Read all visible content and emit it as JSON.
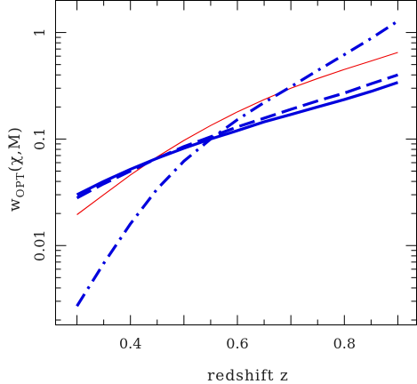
{
  "chart_data": {
    "type": "line",
    "title": "",
    "xlabel": "redshift z",
    "ylabel": {
      "base": "w",
      "subscript": "OPT",
      "rest": "(χ,M)"
    },
    "xlim": [
      0.26,
      0.935
    ],
    "ylim": [
      0.0018,
      2.0
    ],
    "yscale": "log",
    "grid": false,
    "x_ticks": [
      0.4,
      0.6,
      0.8
    ],
    "x_tick_labels": [
      "0.4",
      "0.6",
      "0.8"
    ],
    "y_ticks": [
      0.01,
      0.1,
      1
    ],
    "y_tick_labels": [
      "0.01",
      "0.1",
      "1"
    ],
    "series": [
      {
        "style": "solid-thin",
        "color": "#ee0000",
        "x": [
          0.3,
          0.35,
          0.4,
          0.45,
          0.5,
          0.55,
          0.6,
          0.65,
          0.7,
          0.75,
          0.8,
          0.85,
          0.9
        ],
        "y": [
          0.0195,
          0.03,
          0.046,
          0.068,
          0.097,
          0.134,
          0.18,
          0.235,
          0.3,
          0.37,
          0.45,
          0.54,
          0.65
        ]
      },
      {
        "style": "solid-thick",
        "color": "#0000dd",
        "x": [
          0.3,
          0.35,
          0.4,
          0.45,
          0.5,
          0.55,
          0.6,
          0.65,
          0.7,
          0.75,
          0.8,
          0.85,
          0.9
        ],
        "y": [
          0.03,
          0.04,
          0.052,
          0.066,
          0.082,
          0.1,
          0.12,
          0.145,
          0.17,
          0.2,
          0.235,
          0.28,
          0.34
        ]
      },
      {
        "style": "dashed-thick",
        "color": "#0000dd",
        "x": [
          0.3,
          0.35,
          0.4,
          0.45,
          0.5,
          0.55,
          0.6,
          0.65,
          0.7,
          0.75,
          0.8,
          0.85,
          0.9
        ],
        "y": [
          0.028,
          0.038,
          0.05,
          0.066,
          0.085,
          0.105,
          0.13,
          0.157,
          0.19,
          0.228,
          0.27,
          0.33,
          0.4
        ]
      },
      {
        "style": "dashdot-thick",
        "color": "#0000dd",
        "x": [
          0.3,
          0.35,
          0.4,
          0.45,
          0.5,
          0.55,
          0.6,
          0.65,
          0.7,
          0.75,
          0.8,
          0.85,
          0.9
        ],
        "y": [
          0.0027,
          0.0068,
          0.016,
          0.034,
          0.062,
          0.1,
          0.152,
          0.22,
          0.31,
          0.44,
          0.62,
          0.88,
          1.28
        ]
      }
    ]
  }
}
